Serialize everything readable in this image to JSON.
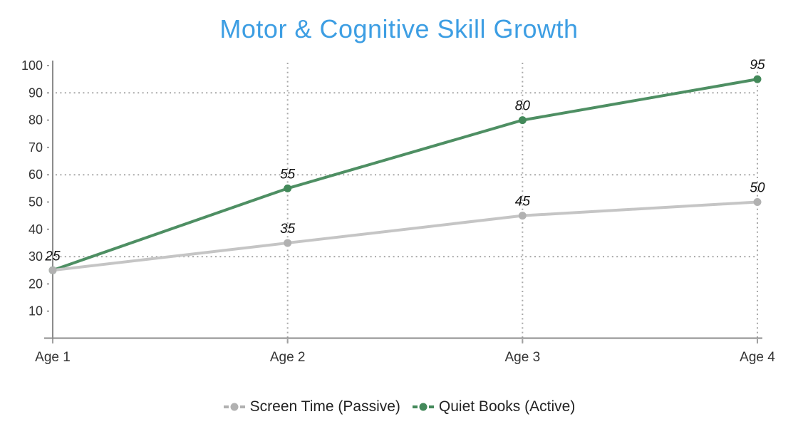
{
  "chart_data": {
    "type": "line",
    "title": "Motor & Cognitive Skill Growth",
    "title_color": "#3d9ee3",
    "categories": [
      "Age 1",
      "Age 2",
      "Age 3",
      "Age 4"
    ],
    "series": [
      {
        "name": "Screen Time (Passive)",
        "values": [
          25,
          35,
          45,
          50
        ],
        "line_color": "#c5c5c5",
        "marker_color": "#b1b1b1"
      },
      {
        "name": "Quiet Books (Active)",
        "values": [
          25,
          55,
          80,
          95
        ],
        "line_color": "#4e8f63",
        "marker_color": "#43895a"
      }
    ],
    "point_labels": {
      "screen_time": [
        "25",
        "35",
        "45",
        "50"
      ],
      "quiet_books": [
        "25",
        "55",
        "80",
        "95"
      ]
    },
    "ylim": [
      0,
      100
    ],
    "yticks": [
      10,
      20,
      30,
      40,
      50,
      60,
      70,
      80,
      90,
      100
    ],
    "horizontal_gridline_values": [
      30,
      60,
      90
    ],
    "vertical_gridline_category_indexes": [
      1,
      2,
      3
    ],
    "grid_on": true,
    "legend_position": "bottom",
    "axis_color": "#8c8c8c",
    "grid_color": "#a8a8a8",
    "tick_label_color": "#333333",
    "point_label_color": "#111111"
  }
}
